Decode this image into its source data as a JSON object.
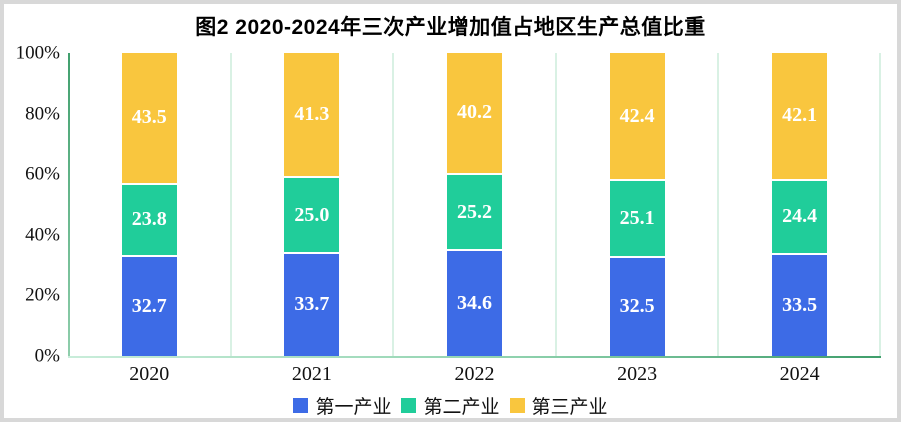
{
  "chart_data": {
    "type": "bar",
    "stacked": true,
    "title": "图2 2020-2024年三次产业增加值占地区生产总值比重",
    "categories": [
      "2020",
      "2021",
      "2022",
      "2023",
      "2024"
    ],
    "series": [
      {
        "name": "第一产业",
        "color": "#3d6be6",
        "values": [
          32.7,
          33.7,
          34.6,
          32.5,
          33.5
        ],
        "labels": [
          "32.7",
          "33.7",
          "34.6",
          "32.5",
          "33.5"
        ]
      },
      {
        "name": "第二产业",
        "color": "#20cd9a",
        "values": [
          23.8,
          25.0,
          25.2,
          25.1,
          24.4
        ],
        "labels": [
          "23.8",
          "25.0",
          "25.2",
          "25.1",
          "24.4"
        ]
      },
      {
        "name": "第三产业",
        "color": "#f9c63e",
        "values": [
          43.5,
          41.3,
          40.2,
          42.4,
          42.1
        ],
        "labels": [
          "43.5",
          "41.3",
          "40.2",
          "42.4",
          "42.1"
        ]
      }
    ],
    "xlabel": "",
    "ylabel": "",
    "ylim": [
      0,
      100
    ],
    "y_ticks": [
      "0%",
      "20%",
      "40%",
      "60%",
      "80%",
      "100%"
    ],
    "grid": "vertical",
    "legend_position": "bottom",
    "value_label_color": "#ffffff"
  },
  "style": {
    "frame_border_color": "#d8d8d8",
    "background": "#ffffff",
    "y_axis_color": "#41a06e",
    "x_axis_color": "#3f9e6b",
    "gridline_color": "#d9f1e4",
    "tick_label_color": "#111111",
    "title_color": "#000000"
  }
}
